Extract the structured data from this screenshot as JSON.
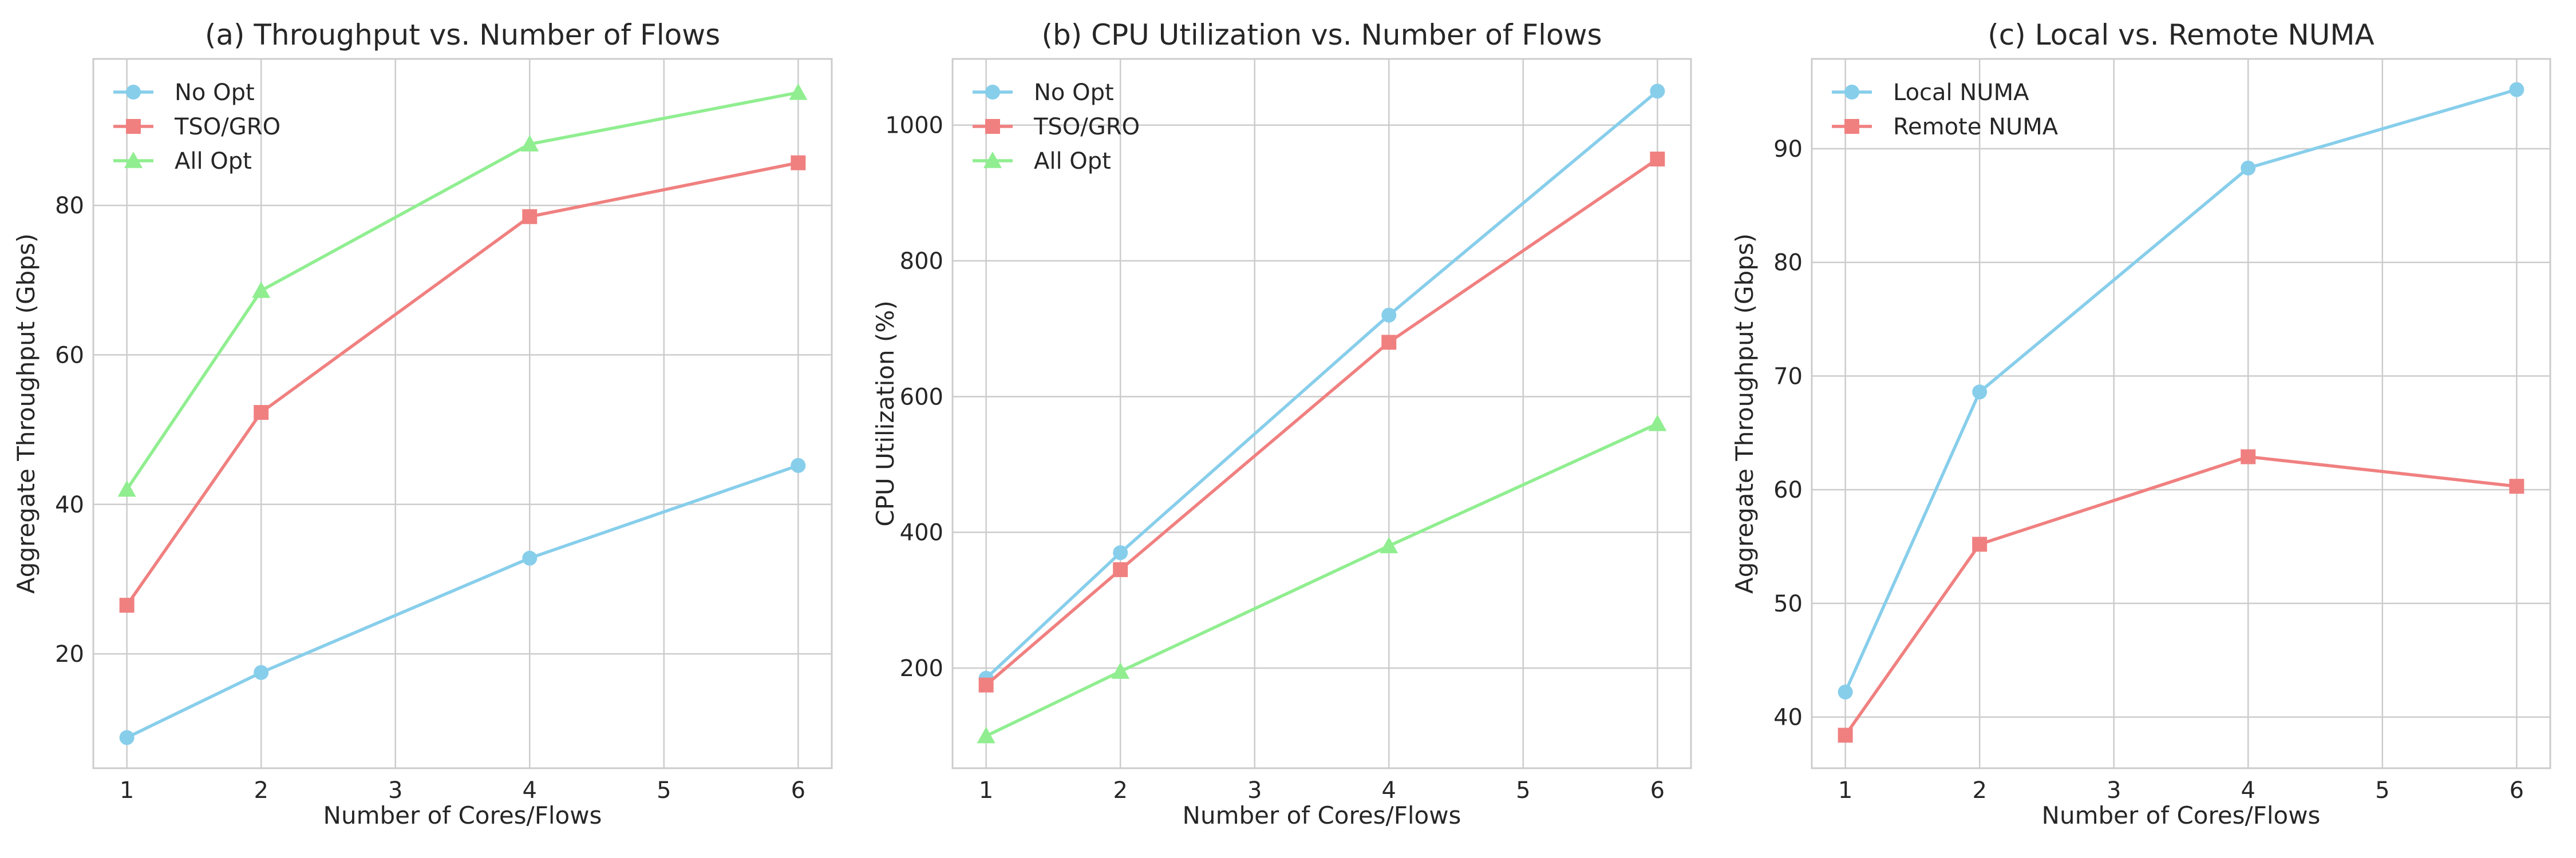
{
  "chart_data": [
    {
      "type": "line",
      "title": "(a) Throughput vs. Number of Flows",
      "xlabel": "Number of Cores/Flows",
      "ylabel": "Aggregate Throughput (Gbps)",
      "x": [
        1,
        2,
        4,
        6
      ],
      "xlim": [
        0.75,
        6.25
      ],
      "ylim": [
        4.7,
        99.6
      ],
      "xticks": [
        1,
        2,
        3,
        4,
        5,
        6
      ],
      "yticks": [
        20,
        40,
        60,
        80
      ],
      "grid": true,
      "legend_position": "top-left",
      "series": [
        {
          "name": "No Opt",
          "values": [
            8.8,
            17.5,
            32.8,
            45.2
          ],
          "color": "#87ceeb",
          "marker": "circle"
        },
        {
          "name": "TSO/GRO",
          "values": [
            26.5,
            52.3,
            78.5,
            85.7
          ],
          "color": "#f08080",
          "marker": "square"
        },
        {
          "name": "All Opt",
          "values": [
            42.0,
            68.6,
            88.2,
            95.1
          ],
          "color": "#90ee90",
          "marker": "triangle"
        }
      ]
    },
    {
      "type": "line",
      "title": "(b) CPU Utilization vs. Number of Flows",
      "xlabel": "Number of Cores/Flows",
      "ylabel": "CPU Utilization (%)",
      "x": [
        1,
        2,
        4,
        6
      ],
      "xlim": [
        0.75,
        6.25
      ],
      "ylim": [
        52.5,
        1097.5
      ],
      "xticks": [
        1,
        2,
        3,
        4,
        5,
        6
      ],
      "yticks": [
        200,
        400,
        600,
        800,
        1000
      ],
      "grid": true,
      "legend_position": "top-left",
      "series": [
        {
          "name": "No Opt",
          "values": [
            185,
            370,
            720,
            1050
          ],
          "color": "#87ceeb",
          "marker": "circle"
        },
        {
          "name": "TSO/GRO",
          "values": [
            175,
            345,
            680,
            950
          ],
          "color": "#f08080",
          "marker": "square"
        },
        {
          "name": "All Opt",
          "values": [
            100,
            195,
            380,
            560
          ],
          "color": "#90ee90",
          "marker": "triangle"
        }
      ]
    },
    {
      "type": "line",
      "title": "(c) Local vs. Remote NUMA",
      "xlabel": "Number of Cores/Flows",
      "ylabel": "Aggregate Throughput (Gbps)",
      "x": [
        1,
        2,
        4,
        6
      ],
      "xlim": [
        0.75,
        6.25
      ],
      "ylim": [
        35.5,
        97.9
      ],
      "xticks": [
        1,
        2,
        3,
        4,
        5,
        6
      ],
      "yticks": [
        40,
        50,
        60,
        70,
        80,
        90
      ],
      "grid": true,
      "legend_position": "top-left",
      "series": [
        {
          "name": "Local NUMA",
          "values": [
            42.2,
            68.6,
            88.3,
            95.2
          ],
          "color": "#87ceeb",
          "marker": "circle"
        },
        {
          "name": "Remote NUMA",
          "values": [
            38.4,
            55.2,
            62.9,
            60.3
          ],
          "color": "#f08080",
          "marker": "square"
        }
      ]
    }
  ]
}
